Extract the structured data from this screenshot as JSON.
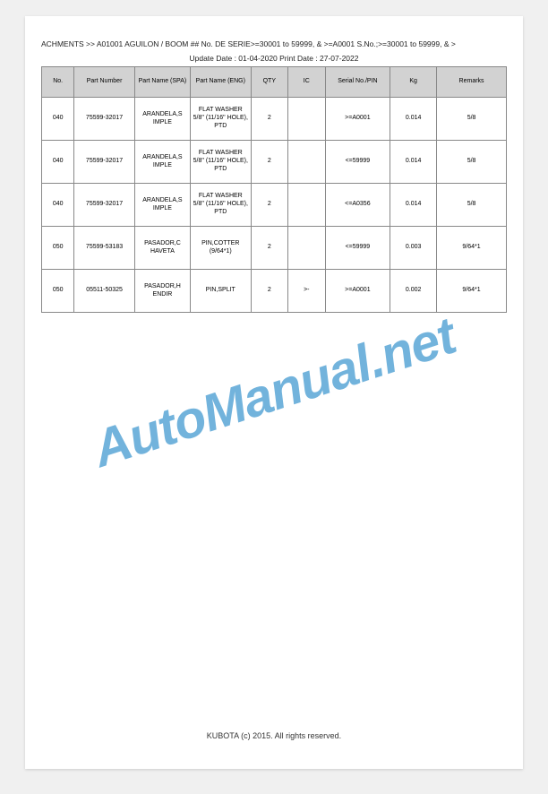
{
  "breadcrumb": "ACHMENTS >> A01001   AGUILON / BOOM ## No. DE SERIE>=30001 to 59999, & >=A0001 S.No.;>=30001 to 59999, & >",
  "dates": "Update Date : 01-04-2020   Print Date : 27-07-2022",
  "watermark": "AutoManual.net",
  "footer": "KUBOTA (c) 2015. All rights reserved.",
  "table": {
    "columns": [
      "No.",
      "Part Number",
      "Part Name (SPA)",
      "Part Name (ENG)",
      "QTY",
      "IC",
      "Serial No./PIN",
      "Kg",
      "Remarks"
    ],
    "rows": [
      {
        "no": "040",
        "pn": "75599-32017",
        "spa": "ARANDELA,S IMPLE",
        "eng": "FLAT WASHER 5/8\" (11/16\" HOLE), PTD",
        "qty": "2",
        "ic": "",
        "sn": ">=A0001",
        "kg": "0.014",
        "rm": "5/8"
      },
      {
        "no": "040",
        "pn": "75599-32017",
        "spa": "ARANDELA,S IMPLE",
        "eng": "FLAT WASHER 5/8\" (11/16\" HOLE), PTD",
        "qty": "2",
        "ic": "",
        "sn": "<=59999",
        "kg": "0.014",
        "rm": "5/8"
      },
      {
        "no": "040",
        "pn": "75599-32017",
        "spa": "ARANDELA,S IMPLE",
        "eng": "FLAT WASHER 5/8\" (11/16\" HOLE), PTD",
        "qty": "2",
        "ic": "",
        "sn": "<=A0356",
        "kg": "0.014",
        "rm": "5/8"
      },
      {
        "no": "050",
        "pn": "75599-53183",
        "spa": "PASADOR,C HAVETA",
        "eng": "PIN,COTTER (9/64*1)",
        "qty": "2",
        "ic": "",
        "sn": "<=59999",
        "kg": "0.003",
        "rm": "9/64*1"
      },
      {
        "no": "050",
        "pn": "05511-50325",
        "spa": "PASADOR,H ENDIR",
        "eng": "PIN,SPLIT",
        "qty": "2",
        "ic": ">-",
        "sn": ">=A0001",
        "kg": "0.002",
        "rm": "9/64*1"
      }
    ]
  }
}
